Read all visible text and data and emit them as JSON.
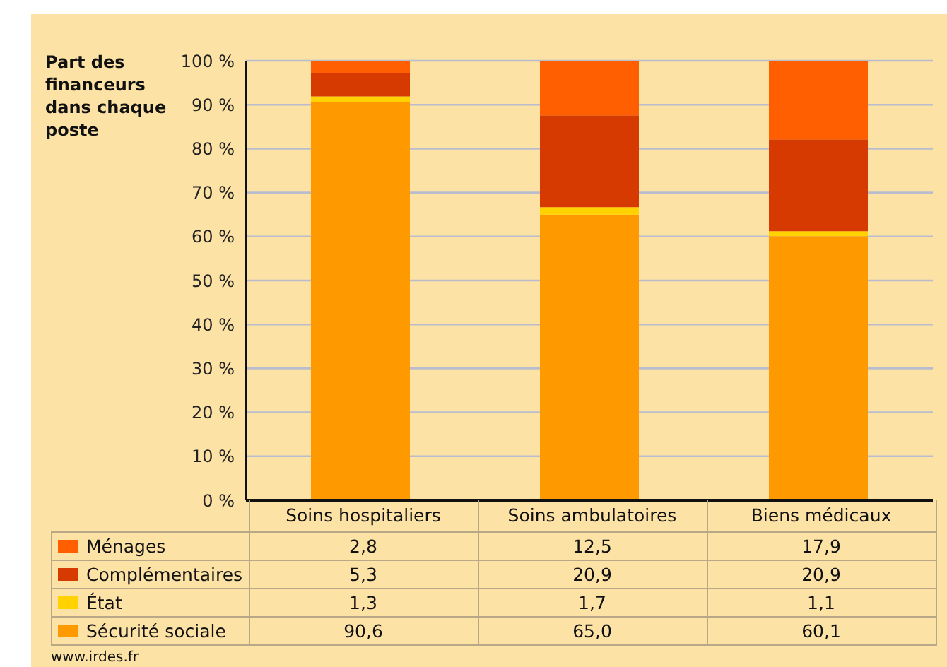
{
  "chart_data": {
    "type": "bar",
    "stacked": true,
    "ylabel": "Part des financeurs dans chaque poste",
    "categories": [
      "Soins hospitaliers",
      "Soins ambulatoires",
      "Biens médicaux"
    ],
    "series": [
      {
        "name": "Sécurité sociale",
        "color": "#ff9900",
        "values": [
          90.6,
          65.0,
          60.1
        ],
        "value_labels": [
          "90,6",
          "65,0",
          "60,1"
        ]
      },
      {
        "name": "État",
        "color": "#ffd200",
        "values": [
          1.3,
          1.7,
          1.1
        ],
        "value_labels": [
          "1,3",
          "1,7",
          "1,1"
        ]
      },
      {
        "name": "Complémentaires",
        "color": "#d63a00",
        "values": [
          5.3,
          20.9,
          20.9
        ],
        "value_labels": [
          "5,3",
          "20,9",
          "20,9"
        ]
      },
      {
        "name": "Ménages",
        "color": "#ff5f00",
        "values": [
          2.8,
          12.5,
          17.9
        ],
        "value_labels": [
          "2,8",
          "12,5",
          "17,9"
        ]
      }
    ],
    "ylim": [
      0,
      100
    ],
    "yticks": [
      {
        "value": 0,
        "label": "0 %"
      },
      {
        "value": 10,
        "label": "10 %"
      },
      {
        "value": 20,
        "label": "20 %"
      },
      {
        "value": 30,
        "label": "30 %"
      },
      {
        "value": 40,
        "label": "40 %"
      },
      {
        "value": 50,
        "label": "50 %"
      },
      {
        "value": 60,
        "label": "60 %"
      },
      {
        "value": 70,
        "label": "70 %"
      },
      {
        "value": 80,
        "label": "80 %"
      },
      {
        "value": 90,
        "label": "90 %"
      },
      {
        "value": 100,
        "label": "100 %"
      }
    ],
    "grid": "y",
    "legend": "bottom",
    "annotations": [
      "www.irdes.fr"
    ]
  }
}
